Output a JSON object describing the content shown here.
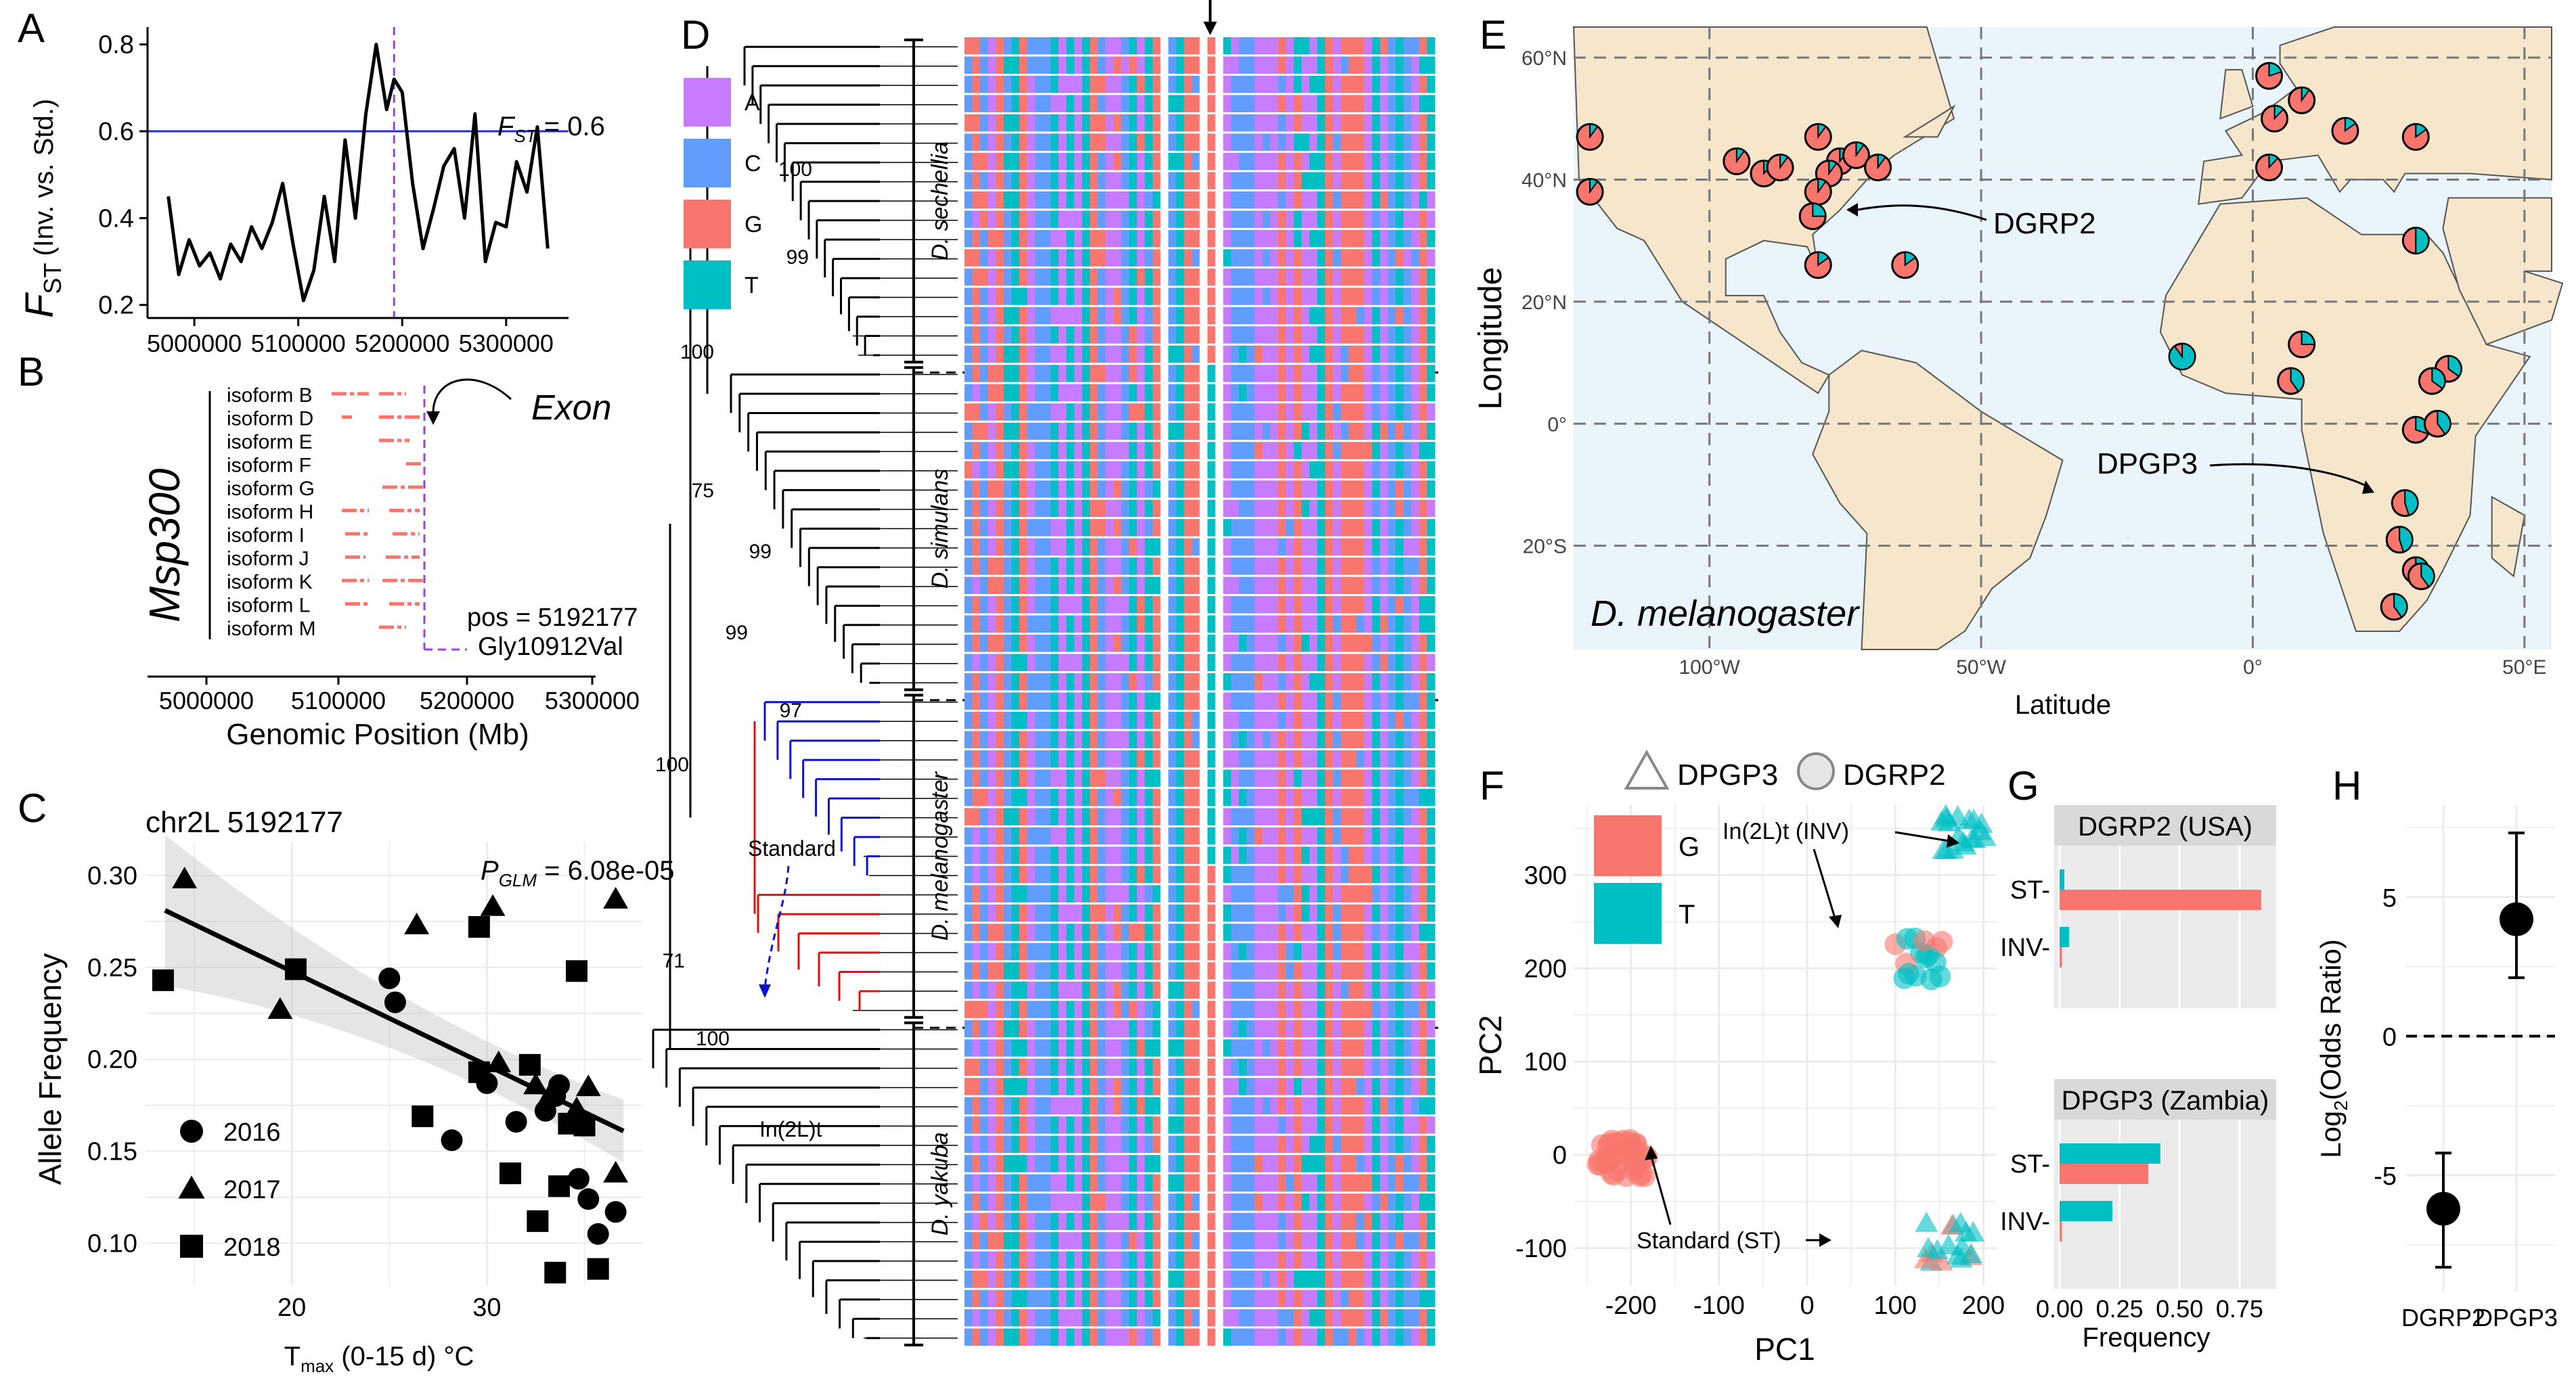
{
  "colors": {
    "A": "#c77cff",
    "C": "#619cff",
    "G": "#f8766d",
    "T": "#00bfc4",
    "standard": "#1010d0",
    "inversion": "#e01010",
    "map_ocean": "#eaf4fb",
    "map_land": "#f5e6cc",
    "grid": "#ebebeb"
  },
  "panel_labels": {
    "a": "A",
    "b": "B",
    "c": "C",
    "d": "D",
    "e": "E",
    "f": "F",
    "g": "G",
    "h": "H"
  },
  "panelA": {
    "ylabel_main": "F",
    "ylabel_sub": "ST",
    "ylabel_paren": "(Inv. vs. Std.)",
    "threshold_label": "F",
    "threshold_sub": "ST",
    "threshold_value": " = 0.6",
    "chart_data": {
      "type": "line",
      "x": [
        4975000,
        4985000,
        4995000,
        5005000,
        5015000,
        5025000,
        5035000,
        5045000,
        5055000,
        5065000,
        5075000,
        5085000,
        5095000,
        5105000,
        5115000,
        5125000,
        5135000,
        5145000,
        5155000,
        5165000,
        5175000,
        5185000,
        5192177,
        5200000,
        5210000,
        5220000,
        5230000,
        5240000,
        5250000,
        5260000,
        5270000,
        5280000,
        5290000,
        5300000,
        5310000,
        5320000,
        5330000,
        5340000
      ],
      "y": [
        0.45,
        0.27,
        0.35,
        0.29,
        0.32,
        0.26,
        0.34,
        0.3,
        0.38,
        0.33,
        0.39,
        0.48,
        0.34,
        0.21,
        0.28,
        0.45,
        0.3,
        0.58,
        0.4,
        0.64,
        0.8,
        0.65,
        0.72,
        0.69,
        0.48,
        0.33,
        0.42,
        0.52,
        0.56,
        0.4,
        0.64,
        0.3,
        0.39,
        0.38,
        0.53,
        0.46,
        0.61,
        0.33
      ],
      "xlim": [
        4955000,
        5360000
      ],
      "ylim": [
        0.17,
        0.84
      ],
      "xticks": [
        "5000000",
        "5100000",
        "5200000",
        "5300000"
      ],
      "yticks": [
        "0.2",
        "0.4",
        "0.6",
        "0.8"
      ],
      "threshold": 0.6,
      "marker_x": 5192177
    }
  },
  "panelB": {
    "gene": "Msp300",
    "exon_label": "Exon",
    "pos_label": "pos = 5192177",
    "variant_label": "Gly10912Val",
    "xlabel": "Genomic Position (Mb)",
    "xticks": [
      "5000000",
      "5100000",
      "5200000",
      "5300000"
    ],
    "isoforms": [
      "isoform B",
      "isoform D",
      "isoform E",
      "isoform F",
      "isoform G",
      "isoform H",
      "isoform I",
      "isoform J",
      "isoform K",
      "isoform L",
      "isoform M"
    ]
  },
  "panelC": {
    "title": "chr2L 5192177",
    "p_label": "P",
    "p_sub": "GLM",
    "p_value": " = 6.08e-05",
    "ylabel": "Allele Frequency",
    "xlabel_main": "T",
    "xlabel_sub": "max",
    "xlabel_rest": " (0-15 d) °C",
    "legend": [
      "2016",
      "2017",
      "2018"
    ],
    "chart_data": {
      "type": "scatter",
      "xlim": [
        12.5,
        38
      ],
      "ylim": [
        0.077,
        0.318
      ],
      "xticks": [
        20,
        30
      ],
      "yticks": [
        0.1,
        0.15,
        0.2,
        0.25,
        0.3
      ],
      "fit": {
        "x": [
          13.5,
          37.0
        ],
        "y": [
          0.281,
          0.161
        ]
      },
      "series": [
        {
          "name": "2016",
          "shape": "circle",
          "points": [
            [
              25,
              0.244
            ],
            [
              25.3,
              0.231
            ],
            [
              28.2,
              0.156
            ],
            [
              30,
              0.187
            ],
            [
              31.5,
              0.166
            ],
            [
              33,
              0.172
            ],
            [
              33.5,
              0.18
            ],
            [
              34.7,
              0.135
            ],
            [
              35.2,
              0.124
            ],
            [
              35.7,
              0.105
            ],
            [
              36.6,
              0.117
            ],
            [
              33.7,
              0.186
            ]
          ]
        },
        {
          "name": "2017",
          "shape": "triangle",
          "points": [
            [
              14.5,
              0.298
            ],
            [
              19.4,
              0.227
            ],
            [
              26.4,
              0.273
            ],
            [
              30.3,
              0.283
            ],
            [
              30.6,
              0.198
            ],
            [
              32.5,
              0.186
            ],
            [
              34.6,
              0.173
            ],
            [
              36.6,
              0.287
            ],
            [
              36.6,
              0.138
            ],
            [
              35.2,
              0.185
            ],
            [
              33.2,
              0.18
            ]
          ]
        },
        {
          "name": "2018",
          "shape": "square",
          "points": [
            [
              13.4,
              0.243
            ],
            [
              20.2,
              0.249
            ],
            [
              26.7,
              0.169
            ],
            [
              29.6,
              0.272
            ],
            [
              29.6,
              0.193
            ],
            [
              31.2,
              0.138
            ],
            [
              32.2,
              0.197
            ],
            [
              32.6,
              0.112
            ],
            [
              33.5,
              0.084
            ],
            [
              34.2,
              0.165
            ],
            [
              35.0,
              0.164
            ],
            [
              34.6,
              0.248
            ],
            [
              35.7,
              0.086
            ],
            [
              33.7,
              0.131
            ]
          ]
        }
      ]
    }
  },
  "panelD": {
    "bases": [
      "A",
      "C",
      "G",
      "T"
    ],
    "clades": [
      "D. sechellia",
      "D. simulans",
      "D. melanogaster",
      "D. yakuba"
    ],
    "bootstrap": [
      "100",
      "99",
      "100",
      "75",
      "99",
      "99",
      "97",
      "100",
      "71",
      "100"
    ],
    "standard_label": "Standard",
    "inversion_label": "In(2L)t"
  },
  "panelE": {
    "title": "D. melanogaster",
    "xlabel": "Latitude",
    "ylabel": "Longitude",
    "lon_ticks": [
      "100°W",
      "50°W",
      "0°",
      "50°E"
    ],
    "lat_ticks": [
      "60°N",
      "40°N",
      "20°N",
      "0°",
      "20°S"
    ],
    "callouts": [
      "DGRP2",
      "DPGP3"
    ],
    "chart_data": {
      "type": "map",
      "lon_range": [
        -125,
        55
      ],
      "lat_range": [
        -37,
        65
      ],
      "sites": [
        {
          "lon": -122,
          "lat": 47,
          "t": 0.1
        },
        {
          "lon": -122,
          "lat": 38,
          "t": 0.1
        },
        {
          "lon": -95,
          "lat": 43,
          "t": 0.1
        },
        {
          "lon": -90,
          "lat": 41,
          "t": 0.12
        },
        {
          "lon": -87,
          "lat": 42,
          "t": 0.1
        },
        {
          "lon": -80,
          "lat": 47,
          "t": 0.1
        },
        {
          "lon": -76,
          "lat": 43,
          "t": 0.1
        },
        {
          "lon": -73,
          "lat": 44,
          "t": 0.1
        },
        {
          "lon": -78,
          "lat": 41,
          "t": 0.1
        },
        {
          "lon": -80,
          "lat": 38,
          "t": 0.1
        },
        {
          "lon": -81,
          "lat": 34,
          "t": 0.25
        },
        {
          "lon": -80,
          "lat": 26,
          "t": 0.15
        },
        {
          "lon": -69,
          "lat": 42,
          "t": 0.1
        },
        {
          "lon": -64,
          "lat": 26,
          "t": 0.15
        },
        {
          "lon": 3,
          "lat": 57,
          "t": 0.2
        },
        {
          "lon": 3,
          "lat": 42,
          "t": 0.12
        },
        {
          "lon": 4,
          "lat": 50,
          "t": 0.12
        },
        {
          "lon": 9,
          "lat": 53,
          "t": 0.1
        },
        {
          "lon": 17,
          "lat": 48,
          "t": 0.15
        },
        {
          "lon": 30,
          "lat": 47,
          "t": 0.15
        },
        {
          "lon": 30,
          "lat": 30,
          "t": 0.5
        },
        {
          "lon": -13,
          "lat": 11,
          "t": 0.9
        },
        {
          "lon": 9,
          "lat": 13,
          "t": 0.25
        },
        {
          "lon": 7,
          "lat": 7,
          "t": 0.4
        },
        {
          "lon": 36,
          "lat": 9,
          "t": 0.35
        },
        {
          "lon": 33,
          "lat": 7,
          "t": 0.35
        },
        {
          "lon": 30,
          "lat": -1,
          "t": 0.3
        },
        {
          "lon": 34,
          "lat": 0,
          "t": 0.4
        },
        {
          "lon": 28,
          "lat": -13,
          "t": 0.45
        },
        {
          "lon": 27,
          "lat": -19,
          "t": 0.45
        },
        {
          "lon": 30,
          "lat": -24,
          "t": 0.45
        },
        {
          "lon": 31,
          "lat": -25,
          "t": 0.4
        },
        {
          "lon": 26,
          "lat": -30,
          "t": 0.4
        }
      ]
    }
  },
  "panelF": {
    "shape_legend": [
      "DPGP3",
      "DGRP2"
    ],
    "color_legend": [
      "G",
      "T"
    ],
    "xlabel": "PC1",
    "ylabel": "PC2",
    "annotations": [
      "In(2L)t (INV)",
      "Standard (ST)"
    ],
    "chart_data": {
      "type": "scatter",
      "xlim": [
        -265,
        215
      ],
      "ylim": [
        -140,
        375
      ],
      "xticks": [
        -200,
        -100,
        0,
        100,
        200
      ],
      "yticks": [
        -100,
        0,
        100,
        200,
        300
      ],
      "clusters": [
        {
          "group": "DGRP2 ST",
          "shape": "circle",
          "color": "G",
          "cx": -210,
          "cy": -2,
          "n": 40
        },
        {
          "group": "DGRP2 INV",
          "shape": "circle",
          "color": "mix",
          "cx": 125,
          "cy": 210,
          "n": 16
        },
        {
          "group": "DPGP3 INV",
          "shape": "triangle",
          "color": "T",
          "cx": 178,
          "cy": 345,
          "n": 18
        },
        {
          "group": "DPGP3 ST",
          "shape": "triangle",
          "color": "mix",
          "cx": 160,
          "cy": -95,
          "n": 18
        }
      ]
    }
  },
  "panelG": {
    "xlabel": "Frequency",
    "xticks": [
      "0.00",
      "0.25",
      "0.50",
      "0.75"
    ],
    "categories": [
      "ST",
      "INV"
    ],
    "chart_data": [
      {
        "type": "bar",
        "title": "DGRP2 (USA)",
        "categories": [
          "ST",
          "INV"
        ],
        "series": [
          {
            "name": "T",
            "values": [
              0.02,
              0.04
            ]
          },
          {
            "name": "G",
            "values": [
              0.84,
              0.01
            ]
          }
        ],
        "xlim": [
          0,
          0.88
        ]
      },
      {
        "type": "bar",
        "title": "DPGP3 (Zambia)",
        "categories": [
          "ST",
          "INV"
        ],
        "series": [
          {
            "name": "T",
            "values": [
              0.42,
              0.22
            ]
          },
          {
            "name": "G",
            "values": [
              0.37,
              0.01
            ]
          }
        ],
        "xlim": [
          0,
          0.88
        ]
      }
    ]
  },
  "panelH": {
    "ylabel": "Log",
    "ylabel_sub": "2",
    "ylabel_rest": "(Odds Ratio)",
    "categories": [
      "DGRP2",
      "DPGP3"
    ],
    "yticks": [
      "-5",
      "0",
      "5"
    ],
    "chart_data": {
      "type": "scatter",
      "categories": [
        "DGRP2",
        "DPGP3"
      ],
      "values": [
        -6.2,
        4.2
      ],
      "ci_low": [
        -8.3,
        2.1
      ],
      "ci_high": [
        -4.2,
        7.3
      ],
      "ylim": [
        -9.2,
        8.3
      ]
    }
  }
}
